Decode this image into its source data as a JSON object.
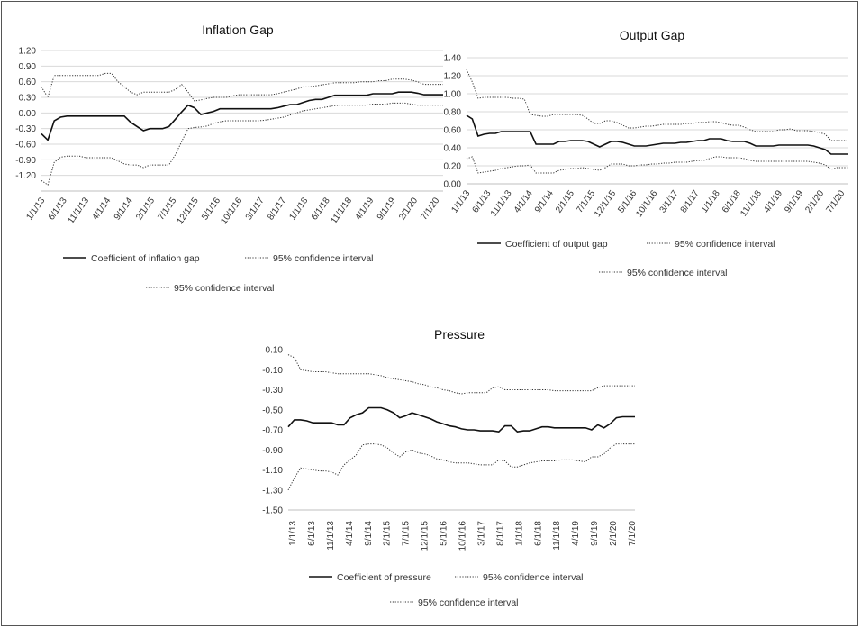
{
  "chart_data": [
    {
      "type": "line",
      "title": "Inflation Gap",
      "xlabel": "",
      "ylabel": "",
      "ylim": [
        -1.5,
        1.2
      ],
      "yticks": [
        "1.20",
        "0.90",
        "0.60",
        "0.30",
        "0.00",
        "-0.30",
        "-0.60",
        "-0.90",
        "-1.20"
      ],
      "x_tick_labels": [
        "1/1/13",
        "6/1/13",
        "11/1/13",
        "4/1/14",
        "9/1/14",
        "2/1/15",
        "7/1/15",
        "12/1/15",
        "5/1/16",
        "10/1/16",
        "3/1/17",
        "8/1/17",
        "1/1/18",
        "6/1/18",
        "11/1/18",
        "4/1/19",
        "9/1/19",
        "2/1/20",
        "7/1/20"
      ],
      "grid": true,
      "legend": "bottom",
      "series": [
        {
          "name": "Coefficient of inflation gap",
          "style": "solid",
          "values": [
            -0.4,
            -0.52,
            -0.15,
            -0.08,
            -0.06,
            -0.06,
            -0.06,
            -0.06,
            -0.06,
            -0.06,
            -0.06,
            -0.06,
            -0.06,
            -0.06,
            -0.18,
            -0.26,
            -0.34,
            -0.3,
            -0.3,
            -0.3,
            -0.26,
            -0.12,
            0.02,
            0.15,
            0.1,
            -0.03,
            0.0,
            0.03,
            0.08,
            0.08,
            0.08,
            0.08,
            0.08,
            0.08,
            0.08,
            0.08,
            0.08,
            0.1,
            0.13,
            0.16,
            0.16,
            0.2,
            0.24,
            0.26,
            0.26,
            0.3,
            0.34,
            0.34,
            0.34,
            0.34,
            0.34,
            0.34,
            0.37,
            0.37,
            0.37,
            0.37,
            0.4,
            0.4,
            0.4,
            0.38,
            0.35,
            0.35,
            0.35,
            0.35
          ]
        },
        {
          "name": "95% confidence interval",
          "style": "dotted",
          "values": [
            0.5,
            0.3,
            0.72,
            0.72,
            0.72,
            0.72,
            0.72,
            0.72,
            0.72,
            0.72,
            0.76,
            0.76,
            0.6,
            0.5,
            0.4,
            0.35,
            0.4,
            0.4,
            0.4,
            0.4,
            0.4,
            0.45,
            0.55,
            0.4,
            0.23,
            0.25,
            0.28,
            0.3,
            0.3,
            0.3,
            0.33,
            0.35,
            0.35,
            0.35,
            0.35,
            0.35,
            0.35,
            0.37,
            0.4,
            0.43,
            0.46,
            0.5,
            0.5,
            0.52,
            0.54,
            0.56,
            0.58,
            0.58,
            0.58,
            0.58,
            0.6,
            0.6,
            0.6,
            0.62,
            0.62,
            0.65,
            0.65,
            0.65,
            0.63,
            0.6,
            0.55,
            0.55,
            0.55,
            0.55
          ]
        },
        {
          "name": "95% confidence interval",
          "style": "dotted",
          "values": [
            -1.3,
            -1.38,
            -0.95,
            -0.85,
            -0.83,
            -0.83,
            -0.83,
            -0.86,
            -0.86,
            -0.86,
            -0.86,
            -0.86,
            -0.92,
            -0.98,
            -1.0,
            -1.0,
            -1.05,
            -1.0,
            -1.0,
            -1.0,
            -1.0,
            -0.8,
            -0.55,
            -0.3,
            -0.28,
            -0.27,
            -0.25,
            -0.2,
            -0.17,
            -0.15,
            -0.15,
            -0.15,
            -0.15,
            -0.15,
            -0.15,
            -0.14,
            -0.12,
            -0.1,
            -0.08,
            -0.04,
            0.0,
            0.04,
            0.06,
            0.08,
            0.1,
            0.12,
            0.14,
            0.15,
            0.15,
            0.15,
            0.15,
            0.15,
            0.17,
            0.17,
            0.17,
            0.19,
            0.19,
            0.19,
            0.17,
            0.15,
            0.15,
            0.15,
            0.15,
            0.15
          ]
        }
      ]
    },
    {
      "type": "line",
      "title": "Output Gap",
      "xlabel": "",
      "ylabel": "",
      "ylim": [
        0.0,
        1.4
      ],
      "yticks": [
        "1.40",
        "1.20",
        "1.00",
        "0.80",
        "0.60",
        "0.40",
        "0.20",
        "0.00"
      ],
      "x_tick_labels": [
        "1/1/13",
        "6/1/13",
        "11/1/13",
        "4/1/14",
        "9/1/14",
        "2/1/15",
        "7/1/15",
        "12/1/15",
        "5/1/16",
        "10/1/16",
        "3/1/17",
        "8/1/17",
        "1/1/18",
        "6/1/18",
        "11/1/18",
        "4/1/19",
        "9/1/19",
        "2/1/20",
        "7/1/20"
      ],
      "grid": true,
      "legend": "bottom",
      "series": [
        {
          "name": "Coefficient of output gap",
          "style": "solid",
          "values": [
            0.76,
            0.72,
            0.53,
            0.55,
            0.56,
            0.56,
            0.58,
            0.58,
            0.58,
            0.58,
            0.58,
            0.58,
            0.44,
            0.44,
            0.44,
            0.44,
            0.47,
            0.47,
            0.48,
            0.48,
            0.48,
            0.47,
            0.44,
            0.41,
            0.44,
            0.47,
            0.47,
            0.46,
            0.44,
            0.42,
            0.42,
            0.42,
            0.43,
            0.44,
            0.45,
            0.45,
            0.45,
            0.46,
            0.46,
            0.47,
            0.48,
            0.48,
            0.5,
            0.5,
            0.5,
            0.48,
            0.47,
            0.47,
            0.47,
            0.45,
            0.42,
            0.42,
            0.42,
            0.42,
            0.43,
            0.43,
            0.43,
            0.43,
            0.43,
            0.43,
            0.42,
            0.4,
            0.38,
            0.33,
            0.33,
            0.33,
            0.33
          ]
        },
        {
          "name": "95% confidence interval",
          "style": "dotted",
          "values": [
            1.27,
            1.13,
            0.95,
            0.96,
            0.96,
            0.96,
            0.96,
            0.96,
            0.95,
            0.95,
            0.94,
            0.77,
            0.76,
            0.75,
            0.75,
            0.77,
            0.77,
            0.77,
            0.77,
            0.77,
            0.76,
            0.72,
            0.67,
            0.67,
            0.7,
            0.7,
            0.68,
            0.65,
            0.62,
            0.62,
            0.63,
            0.64,
            0.64,
            0.65,
            0.66,
            0.66,
            0.66,
            0.66,
            0.67,
            0.67,
            0.68,
            0.68,
            0.69,
            0.69,
            0.68,
            0.66,
            0.65,
            0.65,
            0.63,
            0.6,
            0.58,
            0.58,
            0.58,
            0.58,
            0.6,
            0.6,
            0.61,
            0.59,
            0.59,
            0.59,
            0.58,
            0.57,
            0.55,
            0.48,
            0.48,
            0.48,
            0.48
          ]
        },
        {
          "name": "95% confidence interval",
          "style": "dotted",
          "values": [
            0.28,
            0.3,
            0.12,
            0.13,
            0.14,
            0.15,
            0.17,
            0.18,
            0.19,
            0.2,
            0.2,
            0.21,
            0.12,
            0.12,
            0.12,
            0.12,
            0.15,
            0.16,
            0.17,
            0.17,
            0.18,
            0.17,
            0.16,
            0.15,
            0.18,
            0.22,
            0.22,
            0.22,
            0.2,
            0.2,
            0.21,
            0.21,
            0.22,
            0.22,
            0.23,
            0.23,
            0.24,
            0.24,
            0.24,
            0.25,
            0.26,
            0.26,
            0.28,
            0.3,
            0.3,
            0.29,
            0.29,
            0.29,
            0.28,
            0.26,
            0.25,
            0.25,
            0.25,
            0.25,
            0.25,
            0.25,
            0.25,
            0.25,
            0.25,
            0.25,
            0.24,
            0.23,
            0.21,
            0.16,
            0.18,
            0.18,
            0.18
          ]
        }
      ]
    },
    {
      "type": "line",
      "title": "Pressure",
      "xlabel": "",
      "ylabel": "",
      "ylim": [
        -1.5,
        0.1
      ],
      "yticks": [
        "0.10",
        "-0.10",
        "-0.30",
        "-0.50",
        "-0.70",
        "-0.90",
        "-1.10",
        "-1.30",
        "-1.50"
      ],
      "x_tick_labels": [
        "1/1/13",
        "6/1/13",
        "11/1/13",
        "4/1/14",
        "9/1/14",
        "2/1/15",
        "7/1/15",
        "12/1/15",
        "5/1/16",
        "10/1/16",
        "3/1/17",
        "8/1/17",
        "1/1/18",
        "6/1/18",
        "11/1/18",
        "4/1/19",
        "9/1/19",
        "2/1/20",
        "7/1/20"
      ],
      "grid": false,
      "legend": "bottom",
      "series": [
        {
          "name": "Coefficient of pressure",
          "style": "solid",
          "values": [
            -0.67,
            -0.6,
            -0.6,
            -0.61,
            -0.63,
            -0.63,
            -0.63,
            -0.63,
            -0.65,
            -0.65,
            -0.58,
            -0.55,
            -0.53,
            -0.48,
            -0.48,
            -0.48,
            -0.5,
            -0.53,
            -0.58,
            -0.56,
            -0.53,
            -0.55,
            -0.57,
            -0.59,
            -0.62,
            -0.64,
            -0.66,
            -0.67,
            -0.69,
            -0.7,
            -0.7,
            -0.71,
            -0.71,
            -0.71,
            -0.72,
            -0.66,
            -0.66,
            -0.72,
            -0.71,
            -0.71,
            -0.69,
            -0.67,
            -0.67,
            -0.68,
            -0.68,
            -0.68,
            -0.68,
            -0.68,
            -0.68,
            -0.7,
            -0.65,
            -0.68,
            -0.64,
            -0.58,
            -0.57,
            -0.57,
            -0.57
          ]
        },
        {
          "name": "95% confidence interval",
          "style": "dotted",
          "values": [
            0.05,
            0.02,
            -0.1,
            -0.11,
            -0.12,
            -0.12,
            -0.12,
            -0.13,
            -0.14,
            -0.14,
            -0.14,
            -0.14,
            -0.14,
            -0.14,
            -0.15,
            -0.16,
            -0.18,
            -0.19,
            -0.2,
            -0.21,
            -0.22,
            -0.24,
            -0.25,
            -0.27,
            -0.28,
            -0.3,
            -0.31,
            -0.33,
            -0.34,
            -0.33,
            -0.33,
            -0.33,
            -0.33,
            -0.28,
            -0.27,
            -0.3,
            -0.3,
            -0.3,
            -0.3,
            -0.3,
            -0.3,
            -0.3,
            -0.3,
            -0.31,
            -0.31,
            -0.31,
            -0.31,
            -0.31,
            -0.31,
            -0.31,
            -0.28,
            -0.26,
            -0.26,
            -0.26,
            -0.26,
            -0.26,
            -0.26
          ]
        },
        {
          "name": "95% confidence interval",
          "style": "dotted",
          "values": [
            -1.3,
            -1.18,
            -1.08,
            -1.09,
            -1.1,
            -1.11,
            -1.11,
            -1.12,
            -1.15,
            -1.05,
            -1.0,
            -0.95,
            -0.85,
            -0.84,
            -0.84,
            -0.85,
            -0.88,
            -0.93,
            -0.97,
            -0.92,
            -0.9,
            -0.93,
            -0.94,
            -0.96,
            -0.99,
            -1.0,
            -1.02,
            -1.03,
            -1.03,
            -1.03,
            -1.04,
            -1.05,
            -1.05,
            -1.05,
            -1.0,
            -1.01,
            -1.07,
            -1.07,
            -1.05,
            -1.03,
            -1.02,
            -1.01,
            -1.01,
            -1.01,
            -1.0,
            -1.0,
            -1.0,
            -1.01,
            -1.02,
            -0.97,
            -0.97,
            -0.94,
            -0.88,
            -0.84,
            -0.84,
            -0.84,
            -0.84
          ]
        }
      ]
    }
  ]
}
